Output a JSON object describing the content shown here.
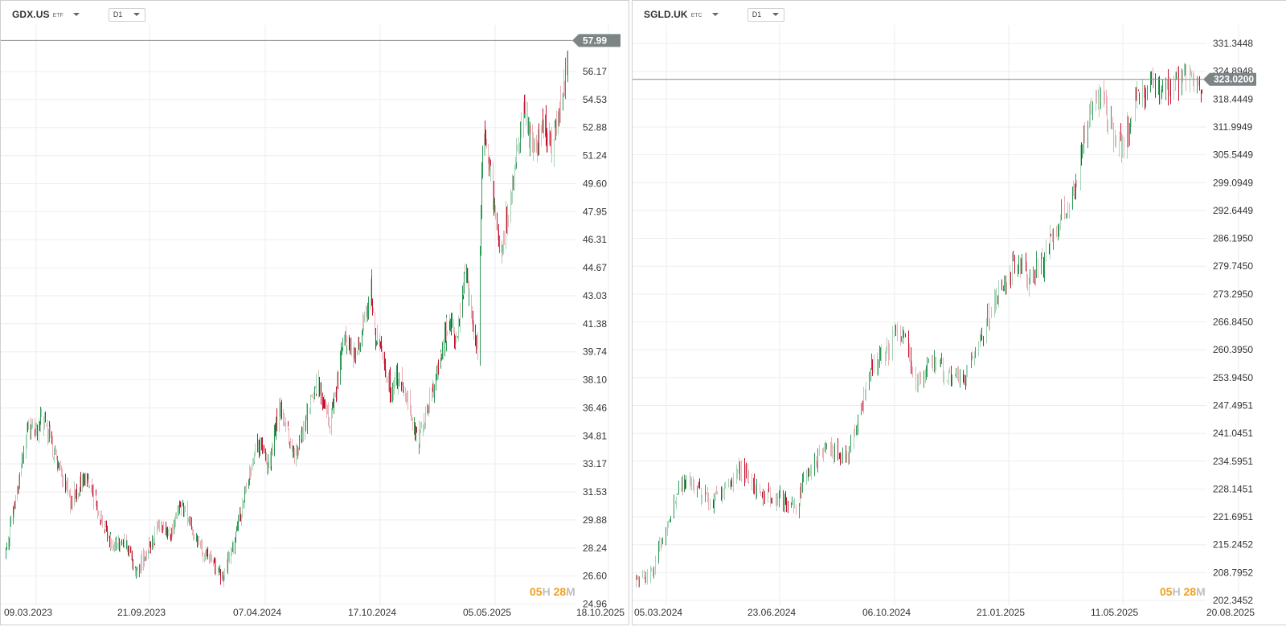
{
  "colors": {
    "up": "#2e9b57",
    "down": "#c8102e",
    "fade_up": "#a6d4b7",
    "fade_down": "#e9b0b8",
    "grid": "#eeeeee",
    "price_line": "#888888",
    "price_tag": "#7d8486"
  },
  "panels": [
    {
      "symbol": "GDX.US",
      "symbol_type": "ETF",
      "timeframe": "D1",
      "current_price_label": "57.99",
      "countdown": {
        "hours": "05",
        "hours_unit": "H",
        "minutes": "28",
        "minutes_unit": "M"
      },
      "chart_data": {
        "type": "ohlc",
        "y_ticks": [
          "56.17",
          "54.53",
          "52.88",
          "51.24",
          "49.60",
          "47.95",
          "46.31",
          "44.67",
          "43.03",
          "41.38",
          "39.74",
          "38.10",
          "36.46",
          "34.81",
          "33.17",
          "31.53",
          "29.88",
          "28.24",
          "26.60",
          "24.96"
        ],
        "x_ticks": [
          "09.03.2023",
          "21.09.2023",
          "07.04.2024",
          "17.10.2024",
          "05.05.2025",
          "18.10.2025"
        ],
        "ylim": [
          24.96,
          58.5
        ],
        "current_price": 57.99,
        "close_path": [
          [
            "09.03.2023",
            28.0
          ],
          [
            "15.04.2023",
            35.5
          ],
          [
            "25.04.2023",
            35.0
          ],
          [
            "05.05.2023",
            36.0
          ],
          [
            "20.06.2023",
            31.0
          ],
          [
            "15.07.2023",
            32.5
          ],
          [
            "25.08.2023",
            28.5
          ],
          [
            "15.09.2023",
            28.7
          ],
          [
            "03.10.2023",
            26.8
          ],
          [
            "10.11.2023",
            29.5
          ],
          [
            "01.12.2023",
            29.0
          ],
          [
            "15.12.2023",
            31.0
          ],
          [
            "10.01.2024",
            28.5
          ],
          [
            "01.02.2024",
            27.5
          ],
          [
            "20.02.2024",
            26.3
          ],
          [
            "15.03.2024",
            29.5
          ],
          [
            "15.04.2024",
            34.5
          ],
          [
            "05.05.2024",
            33.0
          ],
          [
            "20.05.2024",
            36.5
          ],
          [
            "15.06.2024",
            33.5
          ],
          [
            "20.07.2024",
            38.0
          ],
          [
            "10.08.2024",
            35.5
          ],
          [
            "01.09.2024",
            40.5
          ],
          [
            "20.09.2024",
            39.5
          ],
          [
            "15.10.2024",
            43.5
          ],
          [
            "20.10.2024",
            41.0
          ],
          [
            "15.11.2024",
            37.5
          ],
          [
            "01.12.2024",
            38.5
          ],
          [
            "30.12.2024",
            34.5
          ],
          [
            "25.01.2025",
            38.0
          ],
          [
            "15.02.2025",
            41.5
          ],
          [
            "01.03.2025",
            40.5
          ],
          [
            "15.03.2025",
            44.5
          ],
          [
            "05.04.2025",
            39.5
          ],
          [
            "10.04.2025",
            50.5
          ],
          [
            "15.04.2025",
            53.0
          ],
          [
            "25.04.2025",
            50.0
          ],
          [
            "10.05.2025",
            45.5
          ],
          [
            "01.06.2025",
            50.0
          ],
          [
            "15.06.2025",
            54.0
          ],
          [
            "01.07.2025",
            51.5
          ],
          [
            "20.07.2025",
            53.0
          ],
          [
            "01.08.2025",
            51.5
          ],
          [
            "15.08.2025",
            54.5
          ],
          [
            "25.08.2025",
            56.5
          ],
          [
            "03.09.2025",
            57.99
          ]
        ]
      }
    },
    {
      "symbol": "SGLD.UK",
      "symbol_type": "ETC",
      "timeframe": "D1",
      "current_price_label": "323.0200",
      "countdown": {
        "hours": "05",
        "hours_unit": "H",
        "minutes": "28",
        "minutes_unit": "M"
      },
      "chart_data": {
        "type": "ohlc",
        "y_ticks": [
          "331.3448",
          "324.8948",
          "318.4449",
          "311.9949",
          "305.5449",
          "299.0949",
          "292.6449",
          "286.1950",
          "279.7450",
          "273.2950",
          "266.8450",
          "260.3950",
          "253.9450",
          "247.4951",
          "241.0451",
          "234.5951",
          "228.1451",
          "221.6951",
          "215.2452",
          "208.7952",
          "202.3452"
        ],
        "x_ticks": [
          "05.03.2024",
          "23.06.2024",
          "06.10.2024",
          "21.01.2025",
          "11.05.2025",
          "20.08.2025"
        ],
        "ylim": [
          202.3452,
          334.5
        ],
        "current_price": 323.02,
        "close_path": [
          [
            "05.03.2024",
            207.0
          ],
          [
            "20.03.2024",
            209.0
          ],
          [
            "10.04.2024",
            227.0
          ],
          [
            "20.04.2024",
            231.0
          ],
          [
            "10.05.2024",
            224.0
          ],
          [
            "05.06.2024",
            233.0
          ],
          [
            "20.06.2024",
            228.0
          ],
          [
            "10.07.2024",
            226.0
          ],
          [
            "25.07.2024",
            224.0
          ],
          [
            "05.08.2024",
            231.0
          ],
          [
            "20.08.2024",
            238.0
          ],
          [
            "10.09.2024",
            236.0
          ],
          [
            "20.09.2024",
            243.0
          ],
          [
            "01.10.2024",
            256.0
          ],
          [
            "15.10.2024",
            259.0
          ],
          [
            "25.10.2024",
            264.0
          ],
          [
            "01.11.2024",
            262.0
          ],
          [
            "10.11.2024",
            252.0
          ],
          [
            "20.11.2024",
            256.0
          ],
          [
            "01.12.2024",
            257.0
          ],
          [
            "15.12.2024",
            253.0
          ],
          [
            "25.12.2024",
            255.0
          ],
          [
            "10.01.2025",
            265.0
          ],
          [
            "25.01.2025",
            274.0
          ],
          [
            "10.02.2025",
            281.0
          ],
          [
            "20.02.2025",
            277.0
          ],
          [
            "05.03.2025",
            281.0
          ],
          [
            "15.03.2025",
            289.0
          ],
          [
            "25.03.2025",
            293.0
          ],
          [
            "01.04.2025",
            296.0
          ],
          [
            "10.04.2025",
            309.0
          ],
          [
            "15.04.2025",
            315.0
          ],
          [
            "22.04.2025",
            320.0
          ],
          [
            "05.05.2025",
            312.0
          ],
          [
            "15.05.2025",
            307.0
          ],
          [
            "25.05.2025",
            318.0
          ],
          [
            "10.06.2025",
            322.0
          ],
          [
            "25.06.2025",
            320.0
          ],
          [
            "10.07.2025",
            324.0
          ],
          [
            "25.07.2025",
            321.0
          ],
          [
            "10.08.2025",
            326.0
          ],
          [
            "20.08.2025",
            323.02
          ]
        ]
      }
    }
  ]
}
